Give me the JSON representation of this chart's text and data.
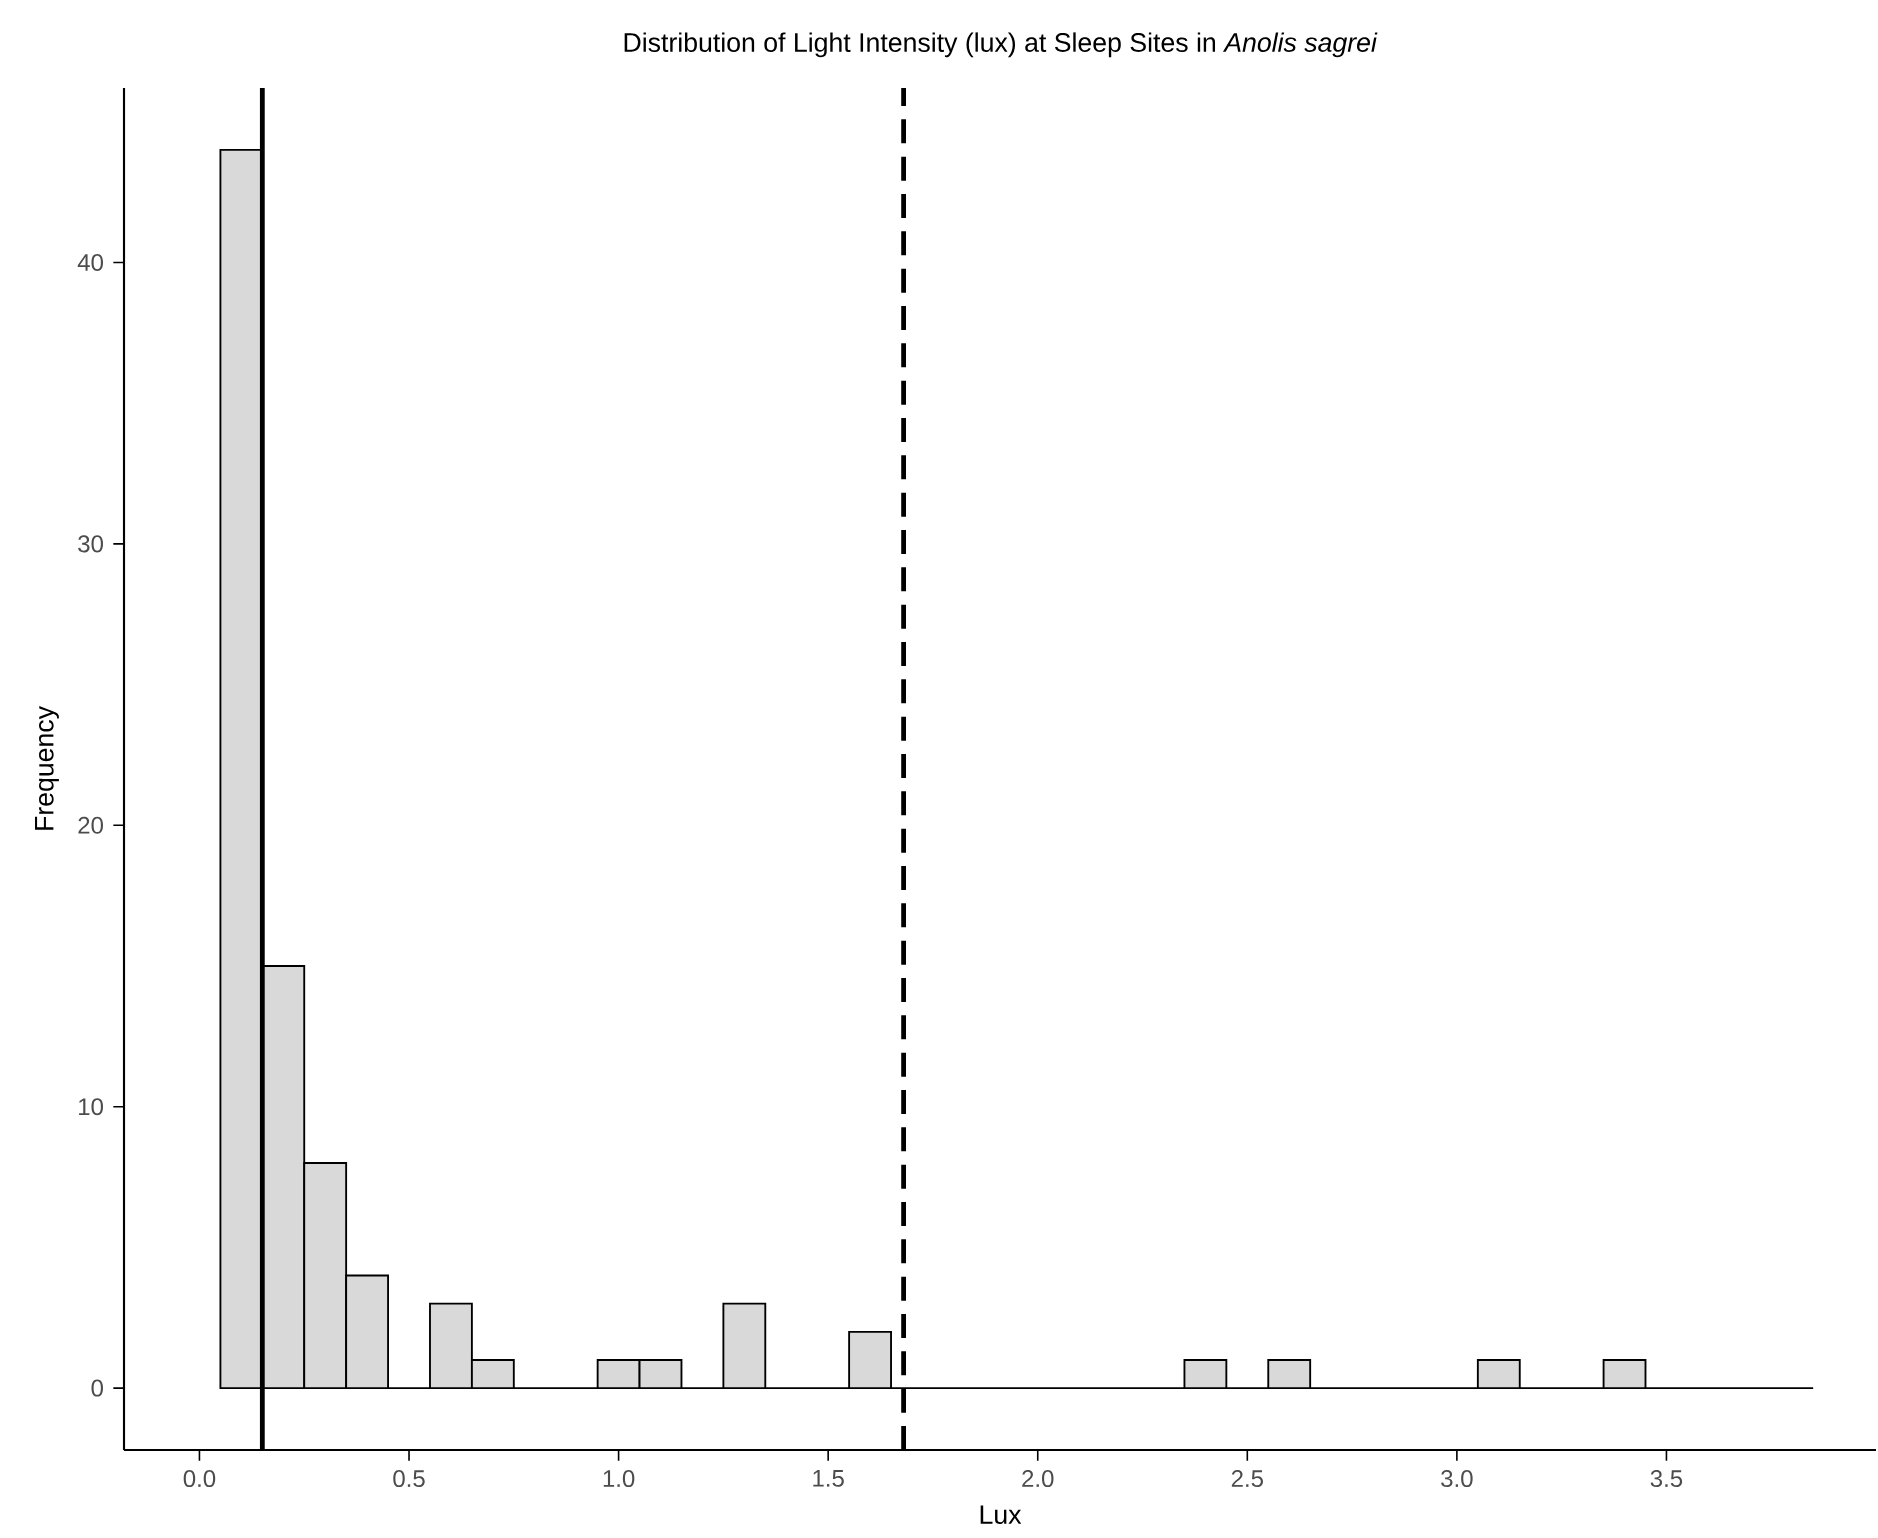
{
  "chart_data": {
    "type": "histogram",
    "title": "Distribution of Light Intensity (lux) at Sleep Sites in *Anolis sagrei*",
    "xlabel": "Lux",
    "ylabel": "Frequency",
    "bins": [
      0.05,
      0.15,
      0.25,
      0.35,
      0.45,
      0.55,
      0.65,
      0.75,
      0.85,
      0.95,
      1.05,
      1.15,
      1.25,
      1.35,
      1.45,
      1.55,
      1.65,
      1.75,
      1.85,
      1.95,
      2.05,
      2.15,
      2.25,
      2.35,
      2.45,
      2.55,
      2.65,
      2.75,
      2.85,
      2.95,
      3.05,
      3.15,
      3.25,
      3.35,
      3.45,
      3.55,
      3.65,
      3.75,
      3.85
    ],
    "values": [
      44,
      15,
      8,
      4,
      0,
      3,
      1,
      0,
      0,
      1,
      1,
      0,
      3,
      0,
      0,
      2,
      0,
      0,
      0,
      0,
      0,
      0,
      0,
      1,
      0,
      1,
      0,
      0,
      0,
      0,
      1,
      0,
      0,
      1,
      0,
      0,
      0,
      0
    ],
    "color": "#d9d9d9",
    "xlim": [
      -0.18,
      4.0
    ],
    "ylim": [
      -2.2,
      46.2
    ],
    "xticks": [
      {
        "value": 0,
        "label": "0.0"
      },
      0.5,
      {
        "value": 1,
        "label": "1.0"
      },
      1.5,
      {
        "value": 2,
        "label": "2.0"
      },
      2.5,
      {
        "value": 3,
        "label": "3.0"
      },
      3.5
    ],
    "yticks": [
      0,
      10,
      20,
      30,
      40
    ],
    "ref_lines": [
      {
        "axis": "x",
        "value": 0.15,
        "color": "#000000",
        "line_style": "solid"
      },
      {
        "axis": "x",
        "value": 1.68,
        "color": "#000000",
        "line_style": "dashed"
      }
    ]
  }
}
